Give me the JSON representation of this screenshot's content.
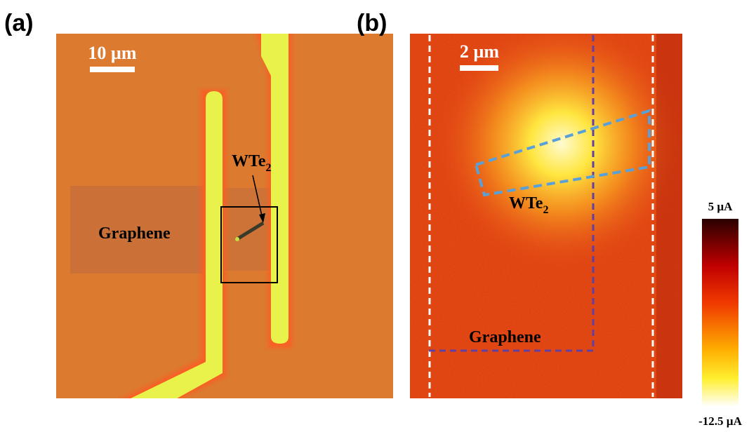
{
  "panel_a": {
    "label": "(a)",
    "scale_bar": "10 µm",
    "flake": {
      "text": "WTe",
      "subscript": "2"
    },
    "graphene": "Graphene"
  },
  "panel_b": {
    "label": "(b)",
    "scale_bar": "2 µm",
    "flake": {
      "text": "WTe",
      "subscript": "2"
    },
    "graphene": "Graphene",
    "colorbar": {
      "max_label": "5 µA",
      "min_label": "-12.5 µA"
    }
  }
}
